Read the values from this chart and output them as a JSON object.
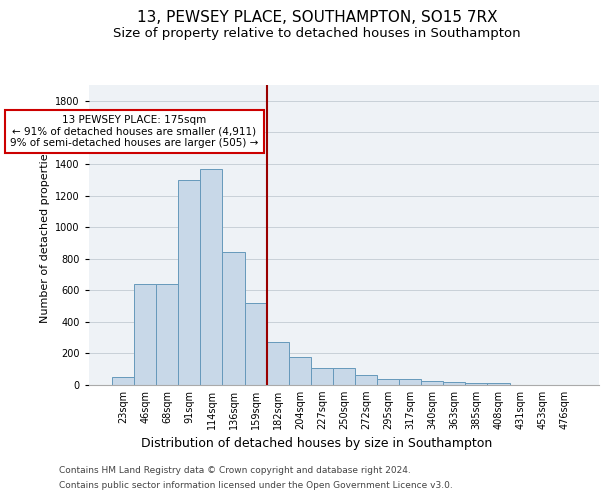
{
  "title": "13, PEWSEY PLACE, SOUTHAMPTON, SO15 7RX",
  "subtitle": "Size of property relative to detached houses in Southampton",
  "xlabel": "Distribution of detached houses by size in Southampton",
  "ylabel": "Number of detached properties",
  "categories": [
    "23sqm",
    "46sqm",
    "68sqm",
    "91sqm",
    "114sqm",
    "136sqm",
    "159sqm",
    "182sqm",
    "204sqm",
    "227sqm",
    "250sqm",
    "272sqm",
    "295sqm",
    "317sqm",
    "340sqm",
    "363sqm",
    "385sqm",
    "408sqm",
    "431sqm",
    "453sqm",
    "476sqm"
  ],
  "values": [
    50,
    640,
    640,
    1300,
    1370,
    845,
    520,
    275,
    175,
    105,
    105,
    65,
    38,
    38,
    28,
    18,
    10,
    10,
    0,
    0,
    0
  ],
  "bar_color": "#c8d8e8",
  "bar_edge_color": "#6699bb",
  "bar_linewidth": 0.7,
  "vline_index": 7,
  "vline_color": "#990000",
  "vline_linewidth": 1.5,
  "annotation_line1": "13 PEWSEY PLACE: 175sqm",
  "annotation_line2": "← 91% of detached houses are smaller (4,911)",
  "annotation_line3": "9% of semi-detached houses are larger (505) →",
  "annotation_box_color": "#ffffff",
  "annotation_box_edge": "#cc0000",
  "ylim": [
    0,
    1900
  ],
  "yticks": [
    0,
    200,
    400,
    600,
    800,
    1000,
    1200,
    1400,
    1600,
    1800
  ],
  "grid_color": "#c8d0d8",
  "background_color": "#eef2f6",
  "footer_line1": "Contains HM Land Registry data © Crown copyright and database right 2024.",
  "footer_line2": "Contains public sector information licensed under the Open Government Licence v3.0.",
  "title_fontsize": 11,
  "subtitle_fontsize": 9.5,
  "xlabel_fontsize": 9,
  "ylabel_fontsize": 8,
  "tick_fontsize": 7,
  "annotation_fontsize": 7.5,
  "footer_fontsize": 6.5
}
